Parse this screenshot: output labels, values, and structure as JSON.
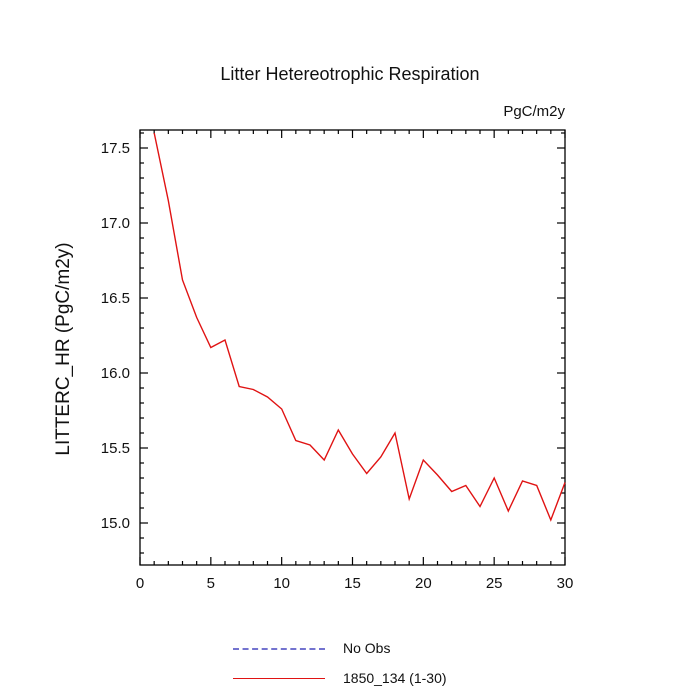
{
  "chart": {
    "title": "Litter Hetereotrophic Respiration",
    "units_label": "PgC/m2y",
    "ylabel": "LITTERC_HR  (PgC/m2y)"
  },
  "legend": {
    "items": [
      {
        "label": "No Obs",
        "style": "dashed",
        "color": "#7373cf"
      },
      {
        "label": "1850_134 (1-30)",
        "style": "solid",
        "color": "#e01313"
      }
    ]
  },
  "chart_data": {
    "type": "line",
    "title": "Litter Hetereotrophic Respiration",
    "xlabel": "",
    "ylabel": "LITTERC_HR (PgC/m2y)",
    "units": "PgC/m2y",
    "xlim": [
      0,
      30
    ],
    "ylim": [
      14.72,
      17.62
    ],
    "xticks": [
      0,
      5,
      10,
      15,
      20,
      25,
      30
    ],
    "yticks": [
      15.0,
      15.5,
      16.0,
      16.5,
      17.0,
      17.5
    ],
    "x_minor_step": 1,
    "y_minor_step": 0.1,
    "grid": false,
    "legend_position": "bottom",
    "series": [
      {
        "name": "1850_134 (1-30)",
        "color": "#e01313",
        "style": "solid",
        "x": [
          1,
          2,
          3,
          4,
          5,
          6,
          7,
          8,
          9,
          10,
          11,
          12,
          13,
          14,
          15,
          16,
          17,
          18,
          19,
          20,
          21,
          22,
          23,
          24,
          25,
          26,
          27,
          28,
          29,
          30
        ],
        "y": [
          17.6,
          17.15,
          16.62,
          16.37,
          16.17,
          16.22,
          15.91,
          15.89,
          15.84,
          15.76,
          15.55,
          15.52,
          15.42,
          15.62,
          15.46,
          15.33,
          15.44,
          15.6,
          15.16,
          15.42,
          15.32,
          15.21,
          15.25,
          15.11,
          15.3,
          15.08,
          15.28,
          15.25,
          15.02,
          15.27
        ]
      },
      {
        "name": "No Obs",
        "color": "#7373cf",
        "style": "dashed",
        "x": [],
        "y": []
      }
    ]
  }
}
